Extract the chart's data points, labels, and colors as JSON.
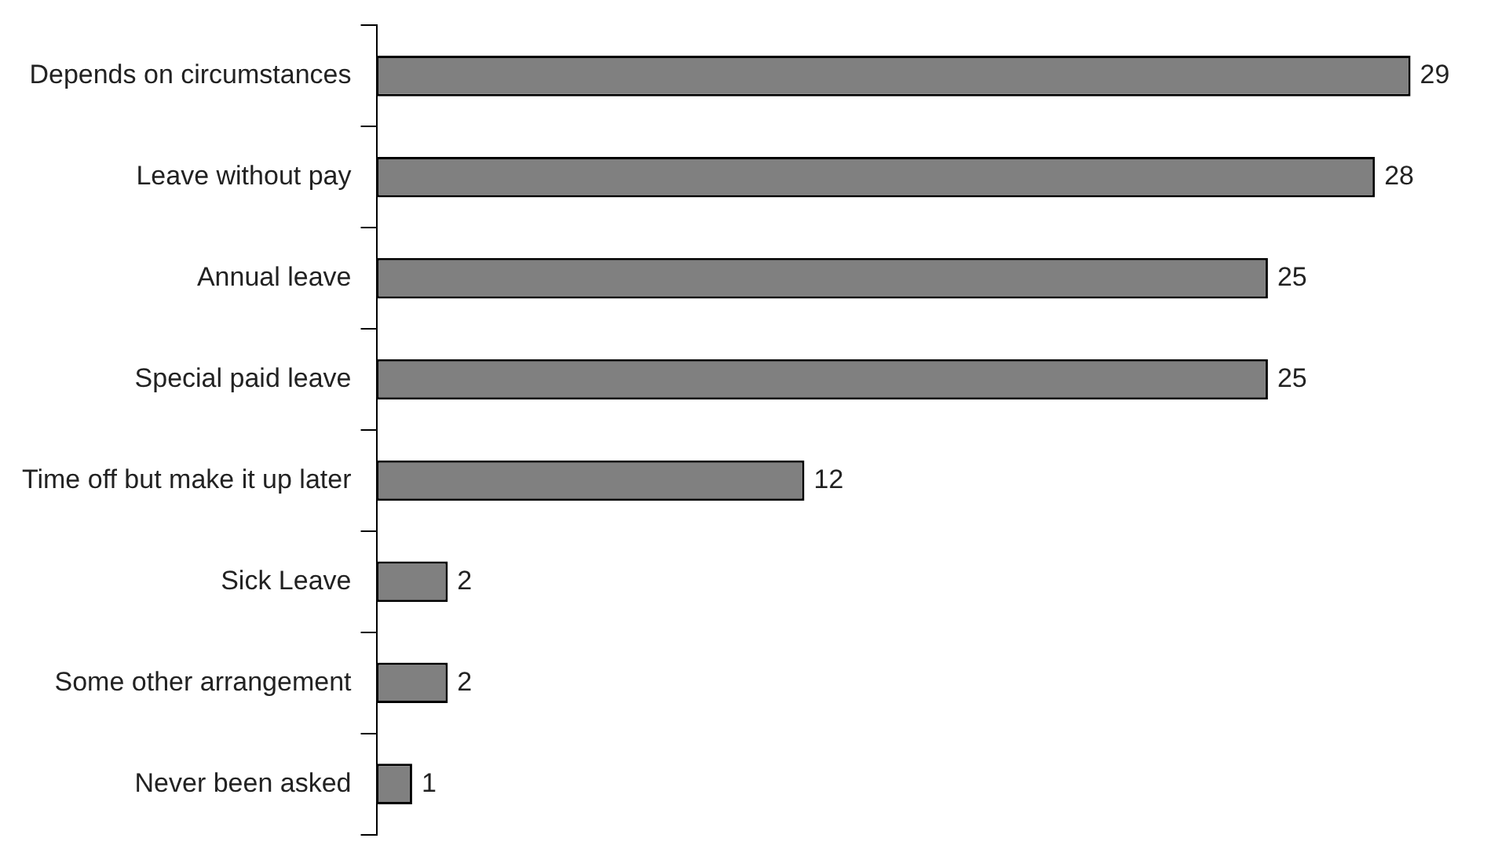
{
  "chart_data": {
    "type": "bar",
    "orientation": "horizontal",
    "categories": [
      "Depends on circumstances",
      "Leave without pay",
      "Annual leave",
      "Special paid leave",
      "Time off but make it up later",
      "Sick Leave",
      "Some other arrangement",
      "Never been asked"
    ],
    "values": [
      29,
      28,
      25,
      25,
      12,
      2,
      2,
      1
    ],
    "color": "#808080",
    "data_labels": true,
    "tick_labels": "y",
    "legend": false
  }
}
